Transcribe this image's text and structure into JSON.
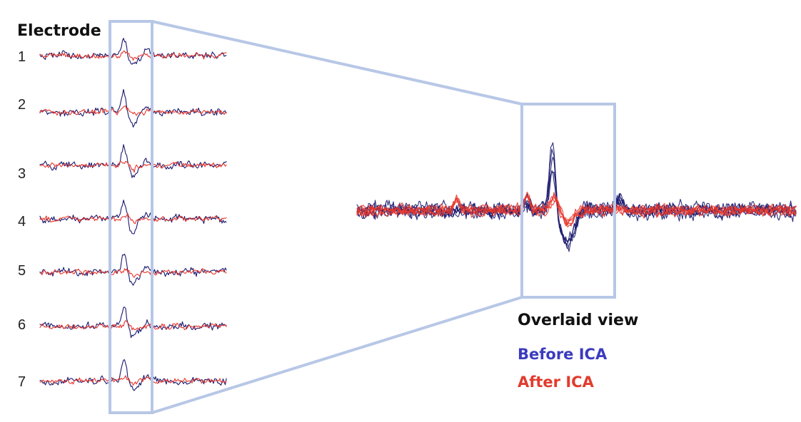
{
  "figure": {
    "electrode_heading": "Electrode",
    "electrodes": [
      "1",
      "2",
      "3",
      "4",
      "5",
      "6",
      "7"
    ],
    "overlaid_title": "Overlaid view",
    "legend": [
      {
        "label": "Before ICA",
        "color": "#3b3bbf"
      },
      {
        "label": "After ICA",
        "color": "#e23b2e"
      }
    ],
    "trace_colors": {
      "before": "#1a1a6e",
      "after": "#e8362b"
    },
    "highlight_color": "#b7c7e6"
  }
}
